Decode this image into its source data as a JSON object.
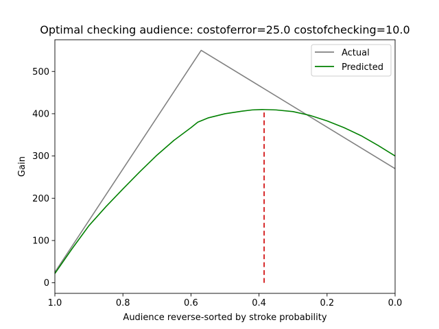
{
  "chart_data": {
    "type": "line",
    "title": "Optimal checking audience: costoferror=25.0 costofchecking=10.0",
    "xlabel": "Audience reverse-sorted by stroke probability",
    "ylabel": "Gain",
    "xlim": [
      1.0,
      0.0
    ],
    "ylim": [
      -25,
      575
    ],
    "x_inverted": true,
    "xticks": [
      1.0,
      0.8,
      0.6,
      0.4,
      0.2,
      0.0
    ],
    "xtick_labels": [
      "1.0",
      "0.8",
      "0.6",
      "0.4",
      "0.2",
      "0.0"
    ],
    "yticks": [
      0,
      100,
      200,
      300,
      400,
      500
    ],
    "ytick_labels": [
      "0",
      "100",
      "200",
      "300",
      "400",
      "500"
    ],
    "grid": false,
    "legend_position": "top-right",
    "series": [
      {
        "name": "Actual",
        "color": "#808080",
        "x": [
          1.0,
          0.57,
          0.0
        ],
        "y": [
          25,
          550,
          270
        ]
      },
      {
        "name": "Predicted",
        "color": "#008000",
        "x": [
          1.0,
          0.95,
          0.9,
          0.85,
          0.8,
          0.75,
          0.7,
          0.65,
          0.6,
          0.58,
          0.55,
          0.5,
          0.45,
          0.42,
          0.39,
          0.35,
          0.3,
          0.25,
          0.2,
          0.15,
          0.1,
          0.05,
          0.0
        ],
        "y": [
          22,
          80,
          135,
          180,
          222,
          263,
          302,
          337,
          367,
          380,
          390,
          400,
          406,
          409,
          410,
          409,
          405,
          396,
          383,
          367,
          348,
          325,
          300
        ]
      }
    ],
    "threshold": {
      "color": "#d62728",
      "x": 0.385,
      "y_from": 0,
      "y_to": 410
    }
  }
}
